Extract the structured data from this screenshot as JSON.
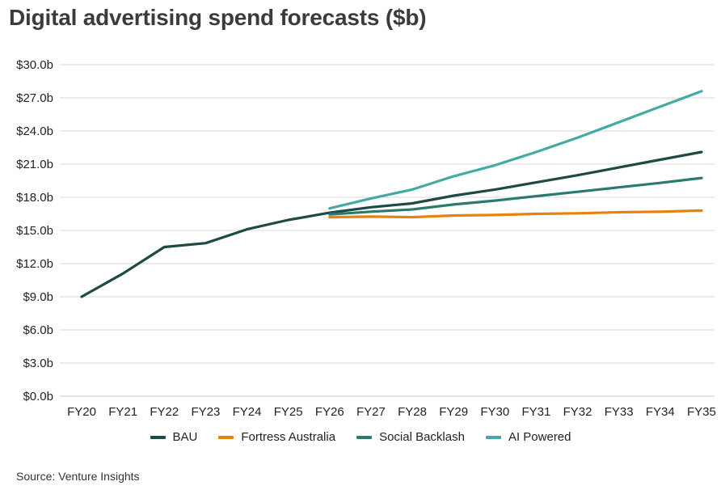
{
  "title": "Digital advertising spend forecasts ($b)",
  "source": "Source: Venture Insights",
  "chart_data": {
    "type": "line",
    "title": "Digital advertising spend forecasts ($b)",
    "xlabel": "",
    "ylabel": "",
    "categories": [
      "FY20",
      "FY21",
      "FY22",
      "FY23",
      "FY24",
      "FY25",
      "FY26",
      "FY27",
      "FY28",
      "FY29",
      "FY30",
      "FY31",
      "FY32",
      "FY33",
      "FY34",
      "FY35"
    ],
    "ylim": [
      0,
      30
    ],
    "yticks": [
      0,
      3,
      6,
      9,
      12,
      15,
      18,
      21,
      24,
      27,
      30
    ],
    "ytick_labels": [
      "$0.0b",
      "$3.0b",
      "$6.0b",
      "$9.0b",
      "$12.0b",
      "$15.0b",
      "$18.0b",
      "$21.0b",
      "$24.0b",
      "$27.0b",
      "$30.0b"
    ],
    "grid": true,
    "legend_position": "bottom",
    "series": [
      {
        "name": "BAU",
        "color": "#1d4a45",
        "values": [
          9.0,
          11.1,
          13.5,
          13.85,
          15.1,
          15.95,
          16.6,
          17.1,
          17.45,
          18.15,
          18.7,
          19.35,
          20.0,
          20.7,
          21.4,
          22.1
        ]
      },
      {
        "name": "Fortress Australia",
        "color": "#e8820c",
        "values": [
          null,
          null,
          null,
          null,
          null,
          null,
          16.2,
          16.25,
          16.2,
          16.35,
          16.4,
          16.5,
          16.55,
          16.65,
          16.7,
          16.8
        ]
      },
      {
        "name": "Social Backlash",
        "color": "#2b7a70",
        "values": [
          null,
          null,
          null,
          null,
          null,
          null,
          16.45,
          16.7,
          16.9,
          17.35,
          17.7,
          18.1,
          18.5,
          18.9,
          19.3,
          19.75
        ]
      },
      {
        "name": "AI Powered",
        "color": "#45aaa6",
        "values": [
          null,
          null,
          null,
          null,
          null,
          null,
          17.0,
          17.9,
          18.7,
          19.9,
          20.9,
          22.1,
          23.4,
          24.8,
          26.2,
          27.6
        ]
      }
    ]
  }
}
